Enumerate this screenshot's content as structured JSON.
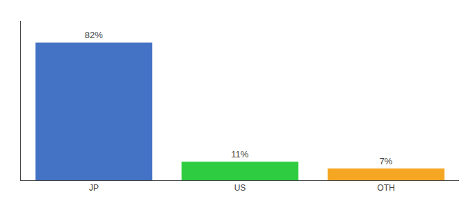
{
  "chart_data": {
    "type": "bar",
    "categories": [
      "JP",
      "US",
      "OTH"
    ],
    "values": [
      82,
      11,
      7
    ],
    "value_labels": [
      "82%",
      "11%",
      "7%"
    ],
    "colors": [
      "#4472c4",
      "#2ecc40",
      "#f5a623"
    ],
    "ylim": [
      0,
      95
    ],
    "data_labels": true,
    "tick_labels": "x",
    "grid": false
  }
}
